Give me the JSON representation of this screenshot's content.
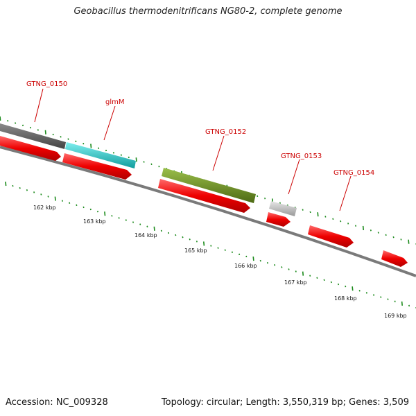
{
  "title": "Geobacillus thermodenitrificans NG80-2, complete genome",
  "footer": {
    "accession": "Accession: NC_009328",
    "summary": "Topology: circular; Length: 3,550,319 bp; Genes: 3,509"
  },
  "scale_labels": [
    "162 kbp",
    "163 kbp",
    "164 kbp",
    "165 kbp",
    "166 kbp",
    "167 kbp",
    "168 kbp",
    "169 kbp"
  ],
  "gene_labels": [
    "GTNG_0150",
    "glmM",
    "GTNG_0152",
    "GTNG_0153",
    "GTNG_0154"
  ],
  "colors": {
    "backbone": "#7a7a7a",
    "cds": "#ee0000",
    "gene_dark": "#555555",
    "gene_cyan": "#22cccc",
    "gene_green": "#6b8e23",
    "gene_light": "#bbbbbb",
    "tick": "#1a8a1a",
    "label": "#cc0000"
  }
}
